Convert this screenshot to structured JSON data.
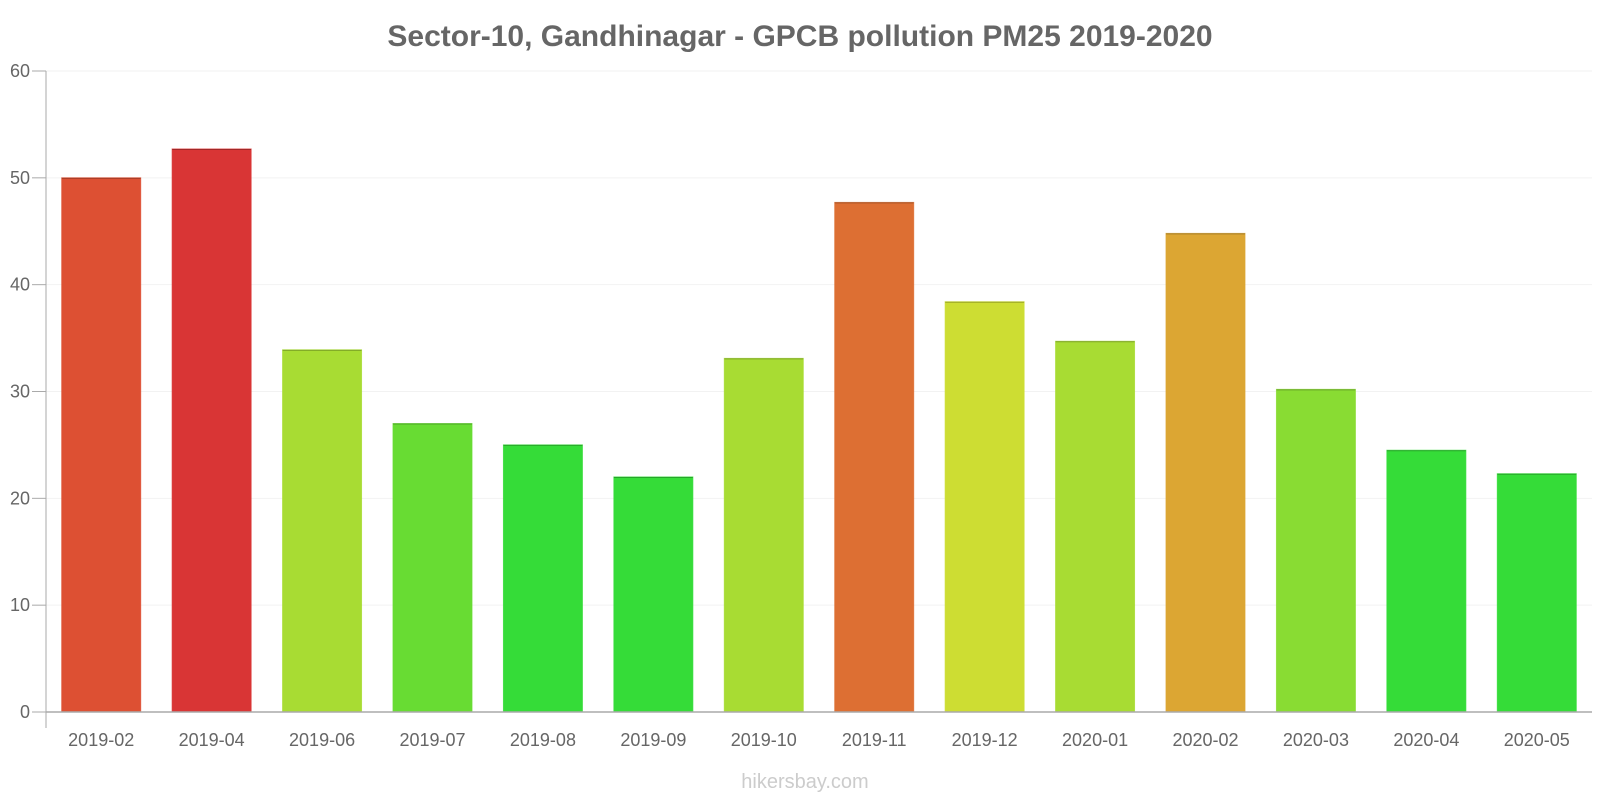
{
  "chart_data": {
    "type": "bar",
    "title": "Sector-10, Gandhinagar - GPCB pollution PM25 2019-2020",
    "xlabel": "",
    "ylabel": "",
    "ylim": [
      0,
      60
    ],
    "yticks": [
      0,
      10,
      20,
      30,
      40,
      50,
      60
    ],
    "grid": true,
    "categories": [
      "2019-02",
      "2019-04",
      "2019-06",
      "2019-07",
      "2019-08",
      "2019-09",
      "2019-10",
      "2019-11",
      "2019-12",
      "2020-01",
      "2020-02",
      "2020-03",
      "2020-04",
      "2020-05"
    ],
    "values": [
      50,
      52.7,
      33.9,
      27,
      25,
      22,
      33.1,
      47.7,
      38.4,
      34.7,
      44.8,
      30.2,
      24.5,
      22.3
    ],
    "colors": [
      "#dd5033",
      "#d93535",
      "#a8dc33",
      "#68dc33",
      "#35dc38",
      "#35dc38",
      "#a8dc33",
      "#dd6f33",
      "#cddd33",
      "#a8dc33",
      "#dca633",
      "#89dc33",
      "#35dc38",
      "#35dc38"
    ]
  },
  "watermark": "hikersbay.com"
}
